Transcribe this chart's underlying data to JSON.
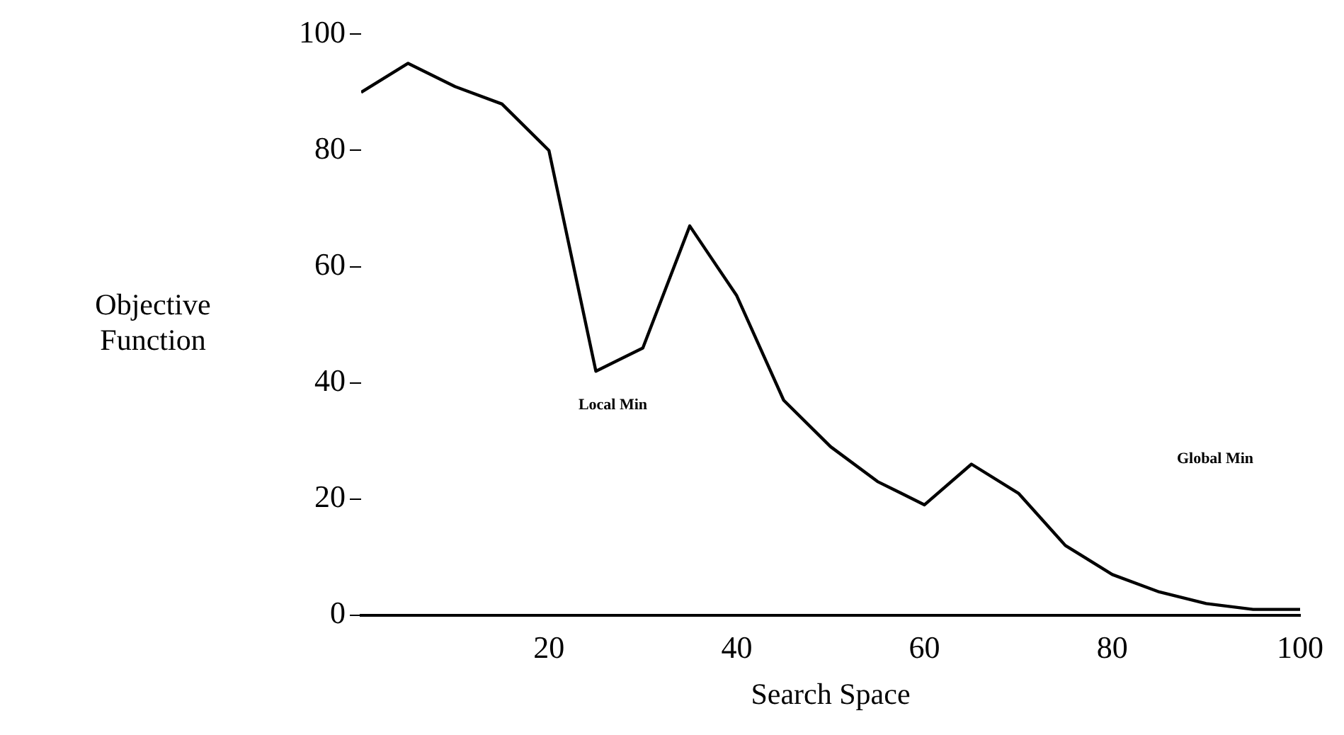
{
  "chart_data": {
    "type": "line",
    "xlabel": "Search Space",
    "ylabel": "Objective\nFunction",
    "x": [
      0,
      5,
      10,
      15,
      20,
      25,
      30,
      35,
      40,
      45,
      50,
      55,
      60,
      65,
      70,
      75,
      80,
      85,
      90,
      95,
      100
    ],
    "series": [
      {
        "color": "#000000",
        "values": [
          90,
          95,
          91,
          88,
          80,
          42,
          46,
          67,
          55,
          37,
          29,
          23,
          19,
          26,
          21,
          12,
          7,
          4,
          2,
          1,
          1
        ]
      }
    ],
    "xlim": [
      0,
      100
    ],
    "xticks": [
      20,
      40,
      60,
      80,
      100
    ],
    "ylim": [
      0,
      100
    ],
    "yticks": [
      0,
      20,
      40,
      60,
      80,
      100
    ],
    "annotations": [
      {
        "text": "Local Min",
        "x": 25,
        "y": 42
      },
      "Global Min"
    ],
    "grid": false,
    "legend": false,
    "marker": "none",
    "line_style": "solid"
  }
}
